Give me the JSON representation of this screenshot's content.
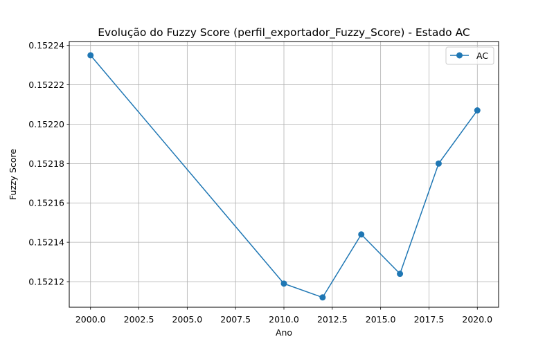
{
  "chart_data": {
    "type": "line",
    "title": "Evolução do Fuzzy Score (perfil_exportador_Fuzzy_Score) - Estado AC",
    "xlabel": "Ano",
    "ylabel": "Fuzzy Score",
    "xlim": [
      1998.9,
      2021.1
    ],
    "ylim": [
      0.152107,
      0.152242
    ],
    "xticks": [
      2000.0,
      2002.5,
      2005.0,
      2007.5,
      2010.0,
      2012.5,
      2015.0,
      2017.5,
      2020.0
    ],
    "xtick_labels": [
      "2000.0",
      "2002.5",
      "2005.0",
      "2007.5",
      "2010.0",
      "2012.5",
      "2015.0",
      "2017.5",
      "2020.0"
    ],
    "yticks": [
      0.15212,
      0.15214,
      0.15216,
      0.15218,
      0.1522,
      0.15222,
      0.15224
    ],
    "ytick_labels": [
      "0.15212",
      "0.15214",
      "0.15216",
      "0.15218",
      "0.15220",
      "0.15222",
      "0.15224"
    ],
    "grid": true,
    "legend_position": "top-right",
    "series": [
      {
        "name": "AC",
        "color": "#1f77b4",
        "marker": "circle",
        "x": [
          2000,
          2010,
          2012,
          2014,
          2016,
          2018,
          2020
        ],
        "y": [
          0.152235,
          0.152119,
          0.152112,
          0.152144,
          0.152124,
          0.15218,
          0.152207
        ]
      }
    ]
  }
}
